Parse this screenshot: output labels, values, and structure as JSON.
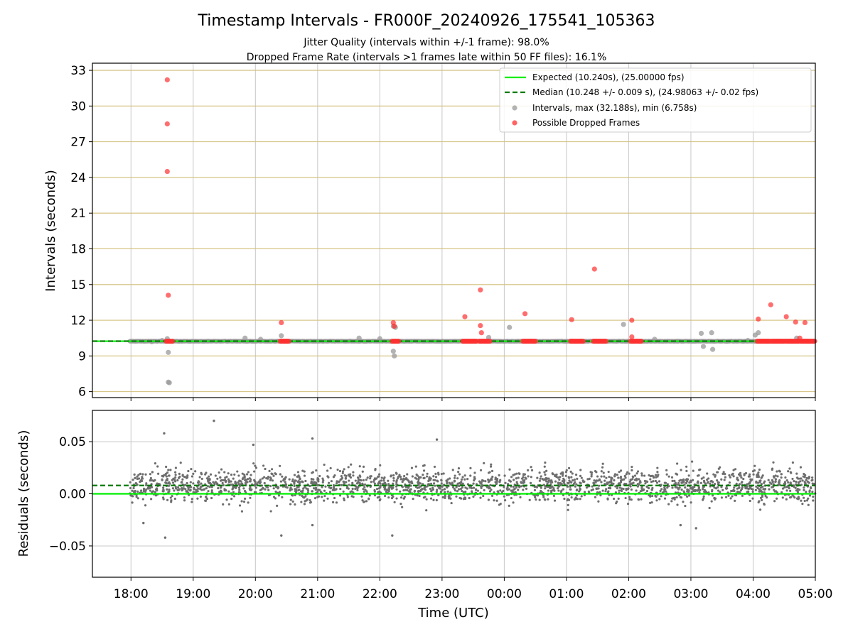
{
  "header": {
    "title": "Timestamp Intervals - FR000F_20240926_175541_105363",
    "subtitle_1": "Jitter Quality (intervals within +/-1 frame): 98.0%",
    "subtitle_2": "Dropped Frame Rate (intervals >1 frames late within 50 FF files): 16.1%"
  },
  "colors": {
    "expected": "#00ee00",
    "median": "#007a00",
    "intervals": "#9a9a9a",
    "dropped": "#ff3030",
    "residuals": "#6e6e6e",
    "gridline_top": "#d2be78",
    "gridline_bottom": "#c8c8c8"
  },
  "chart_data": [
    {
      "type": "scatter",
      "panel": "top",
      "xlabel": "",
      "ylabel": "Intervals (seconds)",
      "x_tick_labels": [
        "18:00",
        "19:00",
        "20:00",
        "21:00",
        "22:00",
        "23:00",
        "00:00",
        "01:00",
        "02:00",
        "03:00",
        "04:00",
        "05:00"
      ],
      "y_ticks": [
        6,
        9,
        12,
        15,
        18,
        21,
        24,
        27,
        30,
        33
      ],
      "ylim": [
        5.5,
        33.6
      ],
      "xlim_hours_from_18": [
        -0.62,
        11.0
      ],
      "grid": true,
      "legend_position": "top-right",
      "legend": [
        "Expected (10.240s), (25.00000 fps)",
        "Median (10.248 +/- 0.009 s), (24.98063 +/- 0.02 fps)",
        "Intervals, max (32.188s), min (6.758s)",
        "Possible Dropped Frames"
      ],
      "expected_interval": 10.24,
      "median_interval": 10.248,
      "intervals_range": [
        -0.02,
        11.0
      ],
      "intervals_outliers": [
        {
          "x": "18:20",
          "y": 10.2
        },
        {
          "x": "18:30",
          "y": 10.3
        },
        {
          "x": "18:35",
          "y": 10.45
        },
        {
          "x": "18:36",
          "y": 9.3
        },
        {
          "x": "18:36",
          "y": 6.8
        },
        {
          "x": "18:37",
          "y": 6.75
        },
        {
          "x": "19:50",
          "y": 10.5
        },
        {
          "x": "20:05",
          "y": 10.4
        },
        {
          "x": "20:25",
          "y": 10.7
        },
        {
          "x": "21:40",
          "y": 10.5
        },
        {
          "x": "22:00",
          "y": 10.45
        },
        {
          "x": "22:13",
          "y": 11.5
        },
        {
          "x": "22:13",
          "y": 9.4
        },
        {
          "x": "22:14",
          "y": 9.0
        },
        {
          "x": "22:15",
          "y": 11.4
        },
        {
          "x": "23:45",
          "y": 10.55
        },
        {
          "x": "00:05",
          "y": 11.4
        },
        {
          "x": "01:55",
          "y": 11.65
        },
        {
          "x": "02:25",
          "y": 10.4
        },
        {
          "x": "03:10",
          "y": 10.9
        },
        {
          "x": "03:12",
          "y": 9.8
        },
        {
          "x": "03:20",
          "y": 10.95
        },
        {
          "x": "03:21",
          "y": 9.55
        },
        {
          "x": "03:55",
          "y": 10.3
        },
        {
          "x": "04:02",
          "y": 10.75
        },
        {
          "x": "04:05",
          "y": 10.95
        },
        {
          "x": "04:42",
          "y": 10.5
        }
      ],
      "dropped_frames": [
        {
          "x": "18:35",
          "y": 32.2
        },
        {
          "x": "18:35",
          "y": 28.5
        },
        {
          "x": "18:35",
          "y": 24.5
        },
        {
          "x": "18:36",
          "y": 14.1
        },
        {
          "x": "20:25",
          "y": 11.8
        },
        {
          "x": "22:13",
          "y": 11.8
        },
        {
          "x": "22:14",
          "y": 11.5
        },
        {
          "x": "23:22",
          "y": 12.3
        },
        {
          "x": "23:37",
          "y": 14.55
        },
        {
          "x": "23:37",
          "y": 11.55
        },
        {
          "x": "23:38",
          "y": 10.95
        },
        {
          "x": "00:20",
          "y": 12.55
        },
        {
          "x": "01:05",
          "y": 12.05
        },
        {
          "x": "01:27",
          "y": 16.3
        },
        {
          "x": "02:03",
          "y": 12.0
        },
        {
          "x": "02:03",
          "y": 10.6
        },
        {
          "x": "04:05",
          "y": 12.1
        },
        {
          "x": "04:17",
          "y": 13.3
        },
        {
          "x": "04:32",
          "y": 12.3
        },
        {
          "x": "04:41",
          "y": 11.85
        },
        {
          "x": "04:50",
          "y": 11.8
        },
        {
          "x": "04:45",
          "y": 10.5
        }
      ],
      "dropped_frame_clusters": [
        {
          "from": "18:34",
          "to": "18:40",
          "y": 10.24
        },
        {
          "from": "20:24",
          "to": "20:32",
          "y": 10.24
        },
        {
          "from": "22:12",
          "to": "22:18",
          "y": 10.24
        },
        {
          "from": "23:20",
          "to": "23:33",
          "y": 10.24
        },
        {
          "from": "23:36",
          "to": "23:46",
          "y": 10.24
        },
        {
          "from": "00:18",
          "to": "00:30",
          "y": 10.24
        },
        {
          "from": "01:04",
          "to": "01:16",
          "y": 10.24
        },
        {
          "from": "01:26",
          "to": "01:38",
          "y": 10.24
        },
        {
          "from": "02:02",
          "to": "02:12",
          "y": 10.24
        },
        {
          "from": "04:04",
          "to": "04:16",
          "y": 10.24
        },
        {
          "from": "04:18",
          "to": "04:30",
          "y": 10.24
        },
        {
          "from": "04:32",
          "to": "04:44",
          "y": 10.24
        },
        {
          "from": "04:46",
          "to": "04:59",
          "y": 10.24
        }
      ]
    },
    {
      "type": "scatter",
      "panel": "bottom",
      "xlabel": "Time (UTC)",
      "ylabel": "Residuals (seconds)",
      "x_tick_labels": [
        "18:00",
        "19:00",
        "20:00",
        "21:00",
        "22:00",
        "23:00",
        "00:00",
        "01:00",
        "02:00",
        "03:00",
        "04:00",
        "05:00"
      ],
      "y_ticks": [
        0.05,
        0.0,
        -0.05
      ],
      "y_tick_labels": [
        "0.05",
        "0.00",
        "−0.05"
      ],
      "ylim": [
        -0.08,
        0.08
      ],
      "grid": true,
      "expected_residual": 0.0,
      "median_residual": 0.008,
      "residuals_range": [
        -0.042,
        0.07
      ],
      "residual_outliers": [
        {
          "x": "18:32",
          "y": 0.058
        },
        {
          "x": "18:33",
          "y": -0.042
        },
        {
          "x": "19:20",
          "y": 0.07
        },
        {
          "x": "19:58",
          "y": 0.047
        },
        {
          "x": "20:25",
          "y": -0.04
        },
        {
          "x": "20:55",
          "y": 0.053
        },
        {
          "x": "22:12",
          "y": -0.04
        },
        {
          "x": "22:55",
          "y": 0.052
        },
        {
          "x": "18:12",
          "y": -0.028
        },
        {
          "x": "20:55",
          "y": -0.03
        },
        {
          "x": "03:05",
          "y": -0.033
        },
        {
          "x": "02:50",
          "y": -0.03
        }
      ]
    }
  ]
}
